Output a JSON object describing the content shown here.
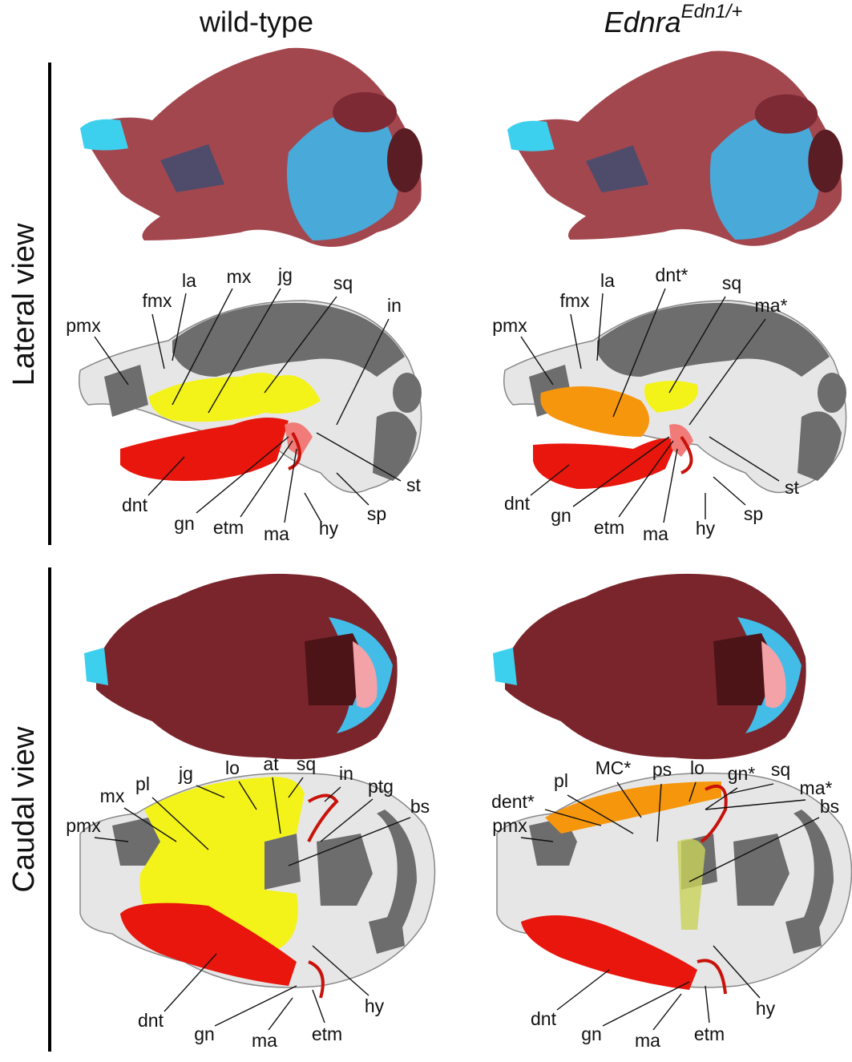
{
  "columns": [
    {
      "title": "wild-type"
    },
    {
      "title": "Ednra",
      "title_superscript": "Edn1/+"
    }
  ],
  "rows": [
    "Lateral view",
    "Caudal view"
  ],
  "panels": [
    {
      "labels": [
        "pmx",
        "fmx",
        "la",
        "mx",
        "jg",
        "sq",
        "in",
        "st",
        "sp",
        "hy",
        "ma",
        "etm",
        "gn",
        "dnt"
      ]
    },
    {
      "labels": [
        "pmx",
        "fmx",
        "la",
        "dnt*",
        "sq",
        "ma*",
        "st",
        "sp",
        "hy",
        "ma",
        "etm",
        "gn",
        "dnt"
      ]
    },
    {
      "labels": [
        "pmx",
        "mx",
        "pl",
        "jg",
        "lo",
        "at",
        "sq",
        "in",
        "ptg",
        "bs",
        "hy",
        "etm",
        "ma",
        "gn",
        "dnt"
      ]
    },
    {
      "labels": [
        "pmx",
        "dent*",
        "pl",
        "MC*",
        "ps",
        "lo",
        "gn*",
        "sq",
        "ma*",
        "bs",
        "hy",
        "etm",
        "ma",
        "gn",
        "dnt"
      ]
    }
  ]
}
